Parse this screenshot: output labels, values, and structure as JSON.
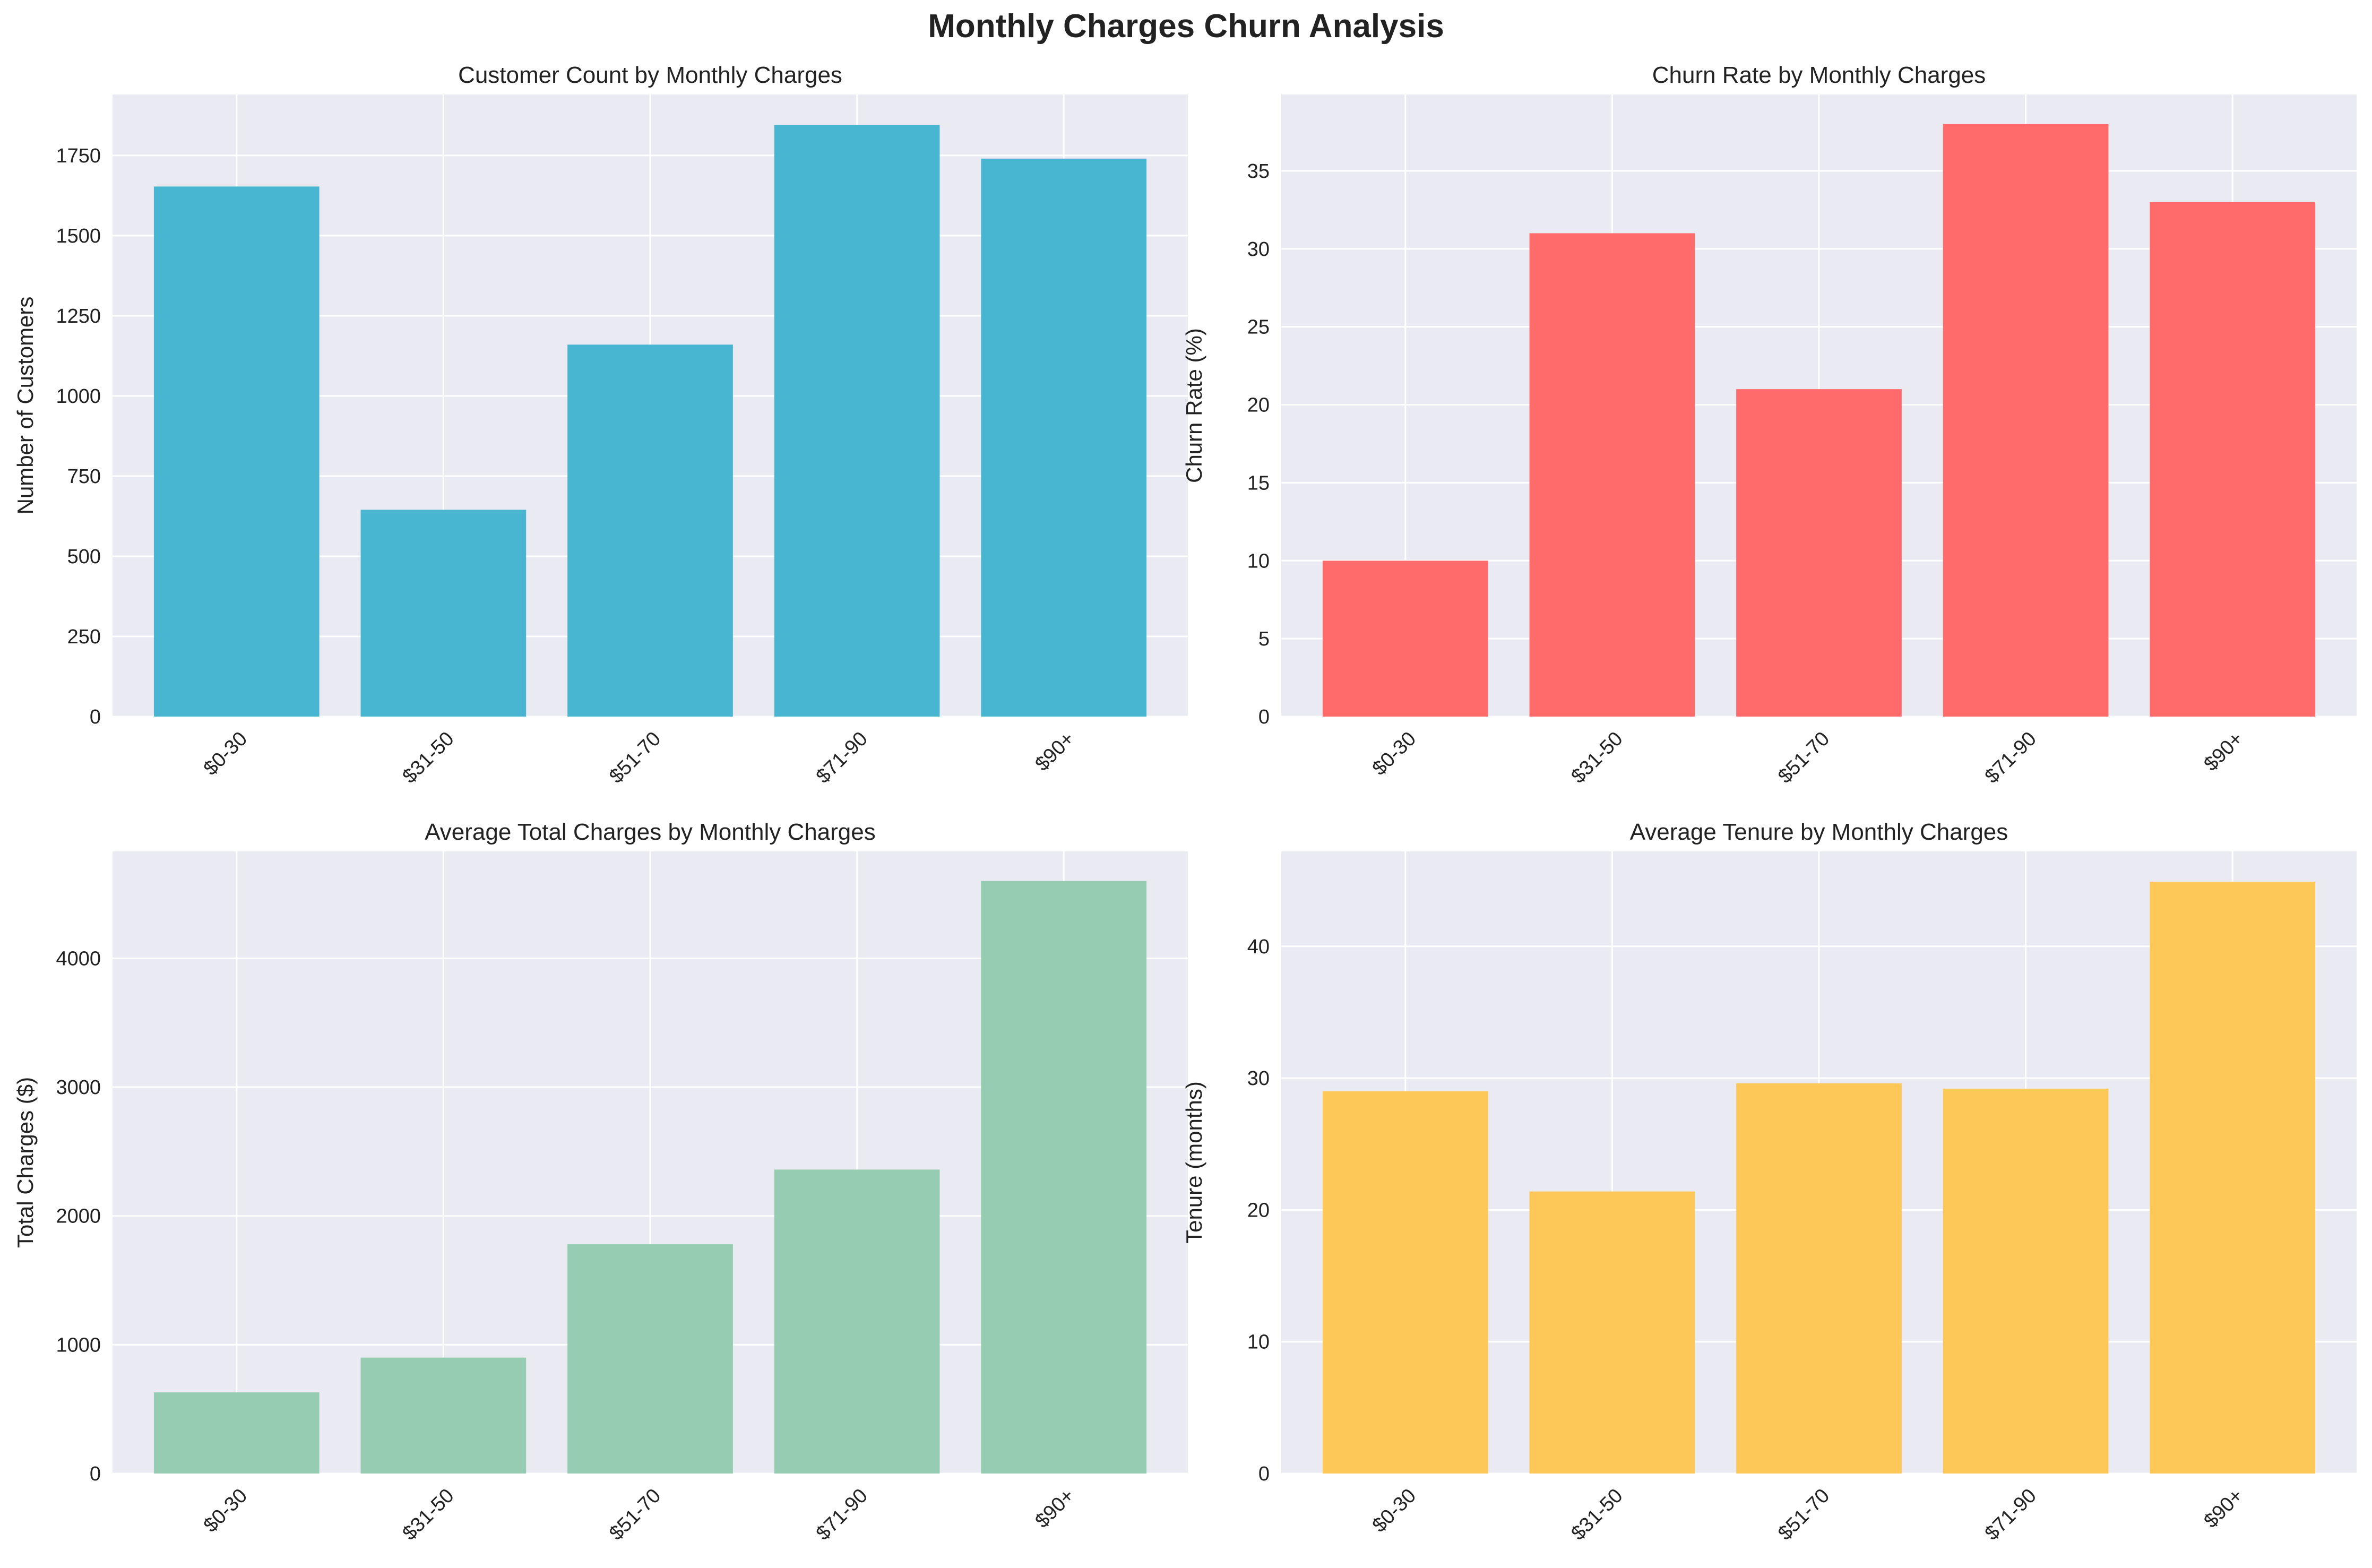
{
  "figure": {
    "title": "Monthly Charges Churn Analysis"
  },
  "colors": {
    "panel_bg": "#eaeaf2",
    "grid": "#ffffff",
    "customer_count": "#48b5d1",
    "churn_rate": "#ff6b6b",
    "total_charges": "#96cdb2",
    "tenure": "#fdc857"
  },
  "chart_data": [
    {
      "type": "bar",
      "title": "Customer Count by Monthly Charges",
      "xlabel": "",
      "ylabel": "Number of Customers",
      "categories": [
        "$0-30",
        "$31-50",
        "$51-70",
        "$71-90",
        "$90+"
      ],
      "values": [
        1653,
        645,
        1160,
        1845,
        1740
      ],
      "ylim": [
        0,
        1940
      ],
      "yticks": [
        0,
        250,
        500,
        750,
        1000,
        1250,
        1500,
        1750
      ],
      "color_key": "customer_count",
      "grid": true
    },
    {
      "type": "bar",
      "title": "Churn Rate by Monthly Charges",
      "xlabel": "",
      "ylabel": "Churn Rate (%)",
      "categories": [
        "$0-30",
        "$31-50",
        "$51-70",
        "$71-90",
        "$90+"
      ],
      "values": [
        10,
        31,
        21,
        38,
        33
      ],
      "ylim": [
        0,
        39.9
      ],
      "yticks": [
        0,
        5,
        10,
        15,
        20,
        25,
        30,
        35
      ],
      "color_key": "churn_rate",
      "grid": true
    },
    {
      "type": "bar",
      "title": "Average Total Charges by Monthly Charges",
      "xlabel": "",
      "ylabel": "Total Charges ($)",
      "categories": [
        "$0-30",
        "$31-50",
        "$51-70",
        "$71-90",
        "$90+"
      ],
      "values": [
        630,
        900,
        1780,
        2360,
        4600
      ],
      "ylim": [
        0,
        4830
      ],
      "yticks": [
        0,
        1000,
        2000,
        3000,
        4000
      ],
      "color_key": "total_charges",
      "grid": true
    },
    {
      "type": "bar",
      "title": "Average Tenure by Monthly Charges",
      "xlabel": "",
      "ylabel": "Tenure (months)",
      "categories": [
        "$0-30",
        "$31-50",
        "$51-70",
        "$71-90",
        "$90+"
      ],
      "values": [
        29.0,
        21.4,
        29.6,
        29.2,
        44.9
      ],
      "ylim": [
        0,
        47.2
      ],
      "yticks": [
        0,
        10,
        20,
        30,
        40
      ],
      "color_key": "tenure",
      "grid": true
    }
  ]
}
